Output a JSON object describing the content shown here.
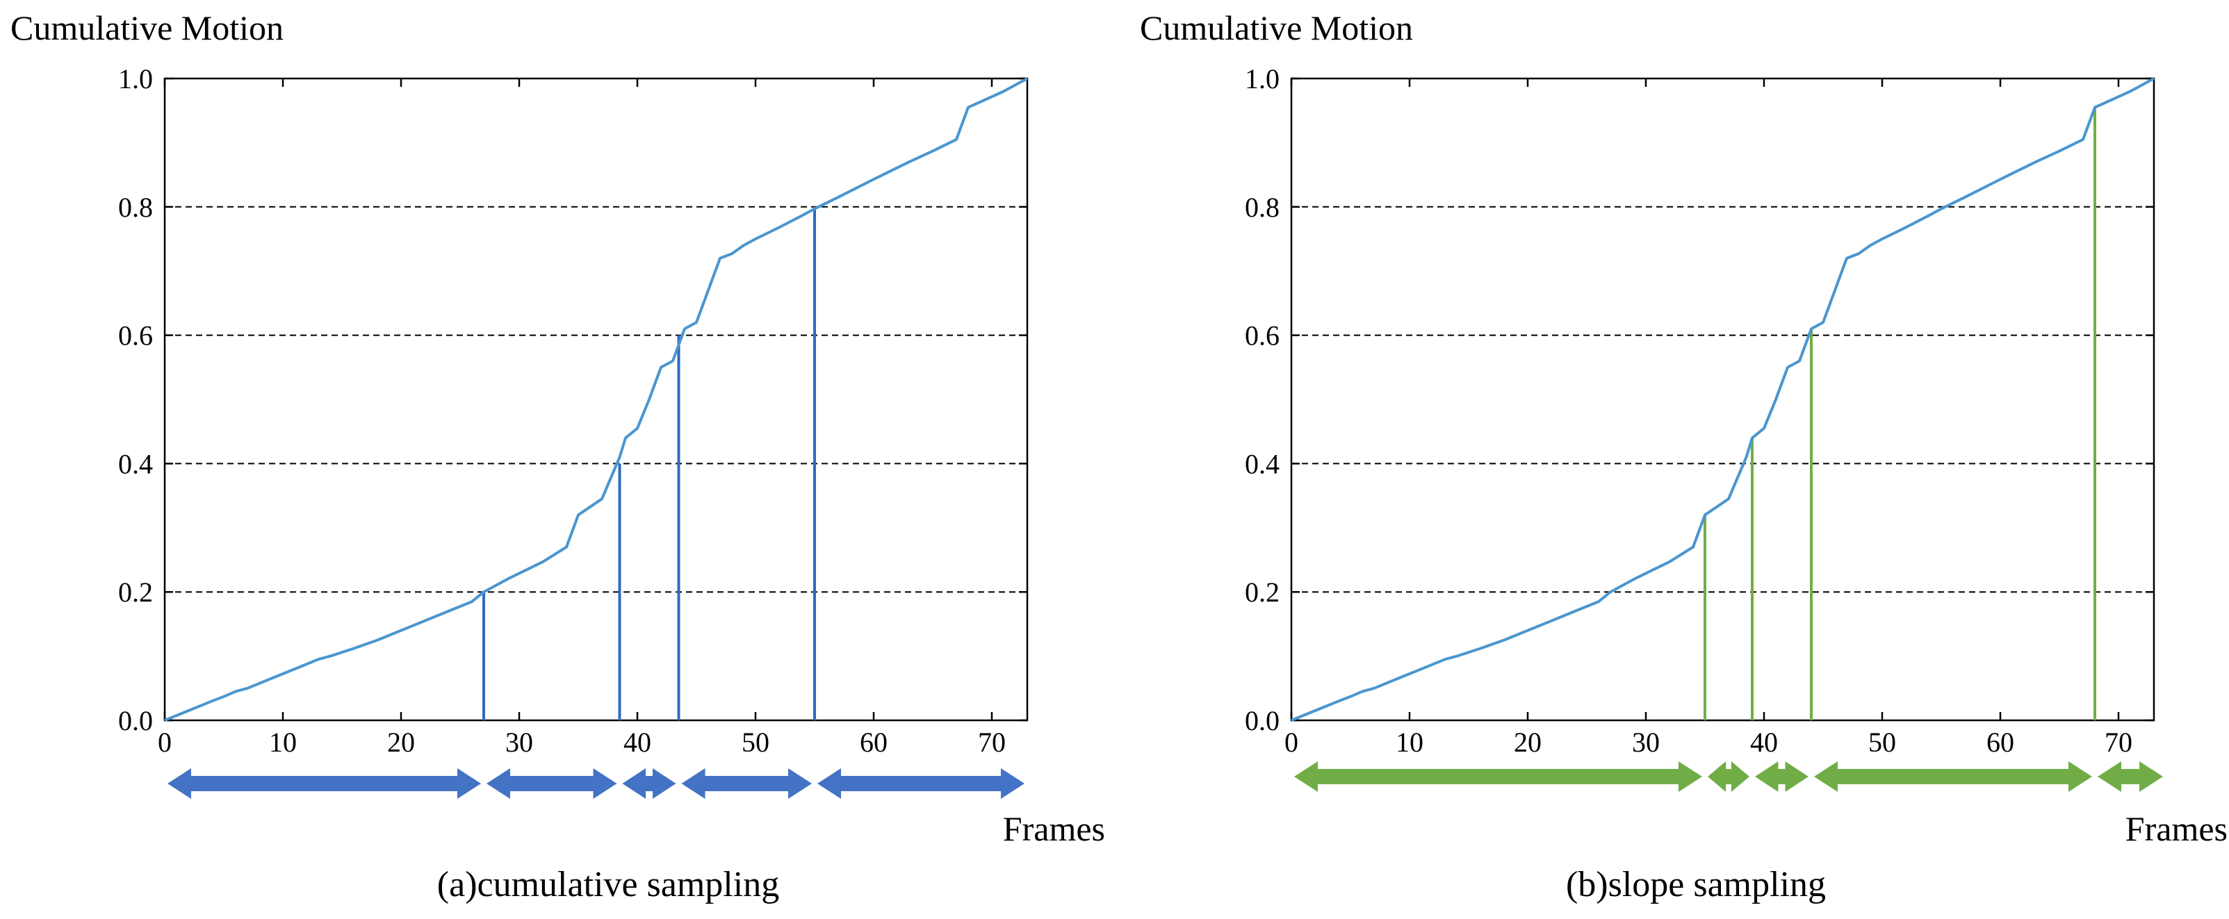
{
  "chart_data": [
    {
      "type": "line",
      "panel": "a",
      "ylabel": "Cumulative Motion",
      "xlabel": "Frames",
      "caption": "(a)cumulative sampling",
      "xlim": [
        0,
        73
      ],
      "ylim": [
        0,
        1
      ],
      "xticks": [
        "0",
        "10",
        "20",
        "30",
        "40",
        "50",
        "60",
        "70"
      ],
      "yticks": [
        "0.0",
        "0.2",
        "0.4",
        "0.6",
        "0.8",
        "1.0"
      ],
      "grid": "horizontal dashed at 0.2, 0.4, 0.6, 0.8",
      "series": [
        {
          "color": "#4a96cf",
          "x": [
            0,
            2,
            4,
            5,
            6,
            7,
            9,
            11,
            13,
            14,
            16,
            18,
            20,
            22,
            24,
            26,
            27,
            29,
            31,
            32,
            34,
            35,
            37,
            38.5,
            39,
            40,
            41,
            42,
            43,
            44,
            45,
            46,
            47,
            48,
            49,
            50,
            52,
            54,
            55,
            57,
            60,
            63,
            65,
            67,
            68,
            71,
            73
          ],
          "y": [
            0,
            0.015,
            0.03,
            0.037,
            0.045,
            0.05,
            0.065,
            0.08,
            0.095,
            0.1,
            0.112,
            0.125,
            0.14,
            0.155,
            0.17,
            0.185,
            0.2,
            0.22,
            0.238,
            0.247,
            0.27,
            0.32,
            0.345,
            0.41,
            0.44,
            0.455,
            0.5,
            0.55,
            0.56,
            0.61,
            0.62,
            0.67,
            0.72,
            0.727,
            0.74,
            0.75,
            0.768,
            0.787,
            0.797,
            0.815,
            0.843,
            0.87,
            0.887,
            0.905,
            0.955,
            0.98,
            1.0
          ]
        }
      ],
      "sample_lines": [
        {
          "x": 27,
          "y": 0.2
        },
        {
          "x": 38.5,
          "y": 0.4
        },
        {
          "x": 43.5,
          "y": 0.6
        },
        {
          "x": 55,
          "y": 0.8
        }
      ],
      "sample_color": "#2f6ac0",
      "segments": [
        [
          0,
          27
        ],
        [
          27,
          38.5
        ],
        [
          38.5,
          43.5
        ],
        [
          43.5,
          55
        ],
        [
          55,
          73
        ]
      ],
      "arrow_color": "#4472c4"
    },
    {
      "type": "line",
      "panel": "b",
      "ylabel": "Cumulative Motion",
      "xlabel": "Frames",
      "caption": "(b)slope sampling",
      "xlim": [
        0,
        73
      ],
      "ylim": [
        0,
        1
      ],
      "xticks": [
        "0",
        "10",
        "20",
        "30",
        "40",
        "50",
        "60",
        "70"
      ],
      "yticks": [
        "0.0",
        "0.2",
        "0.4",
        "0.6",
        "0.8",
        "1.0"
      ],
      "grid": "horizontal dashed at 0.2, 0.4, 0.6, 0.8",
      "series": [
        {
          "color": "#4a96cf",
          "x": [
            0,
            2,
            4,
            5,
            6,
            7,
            9,
            11,
            13,
            14,
            16,
            18,
            20,
            22,
            24,
            26,
            27,
            29,
            31,
            32,
            34,
            35,
            37,
            38.5,
            39,
            40,
            41,
            42,
            43,
            44,
            45,
            46,
            47,
            48,
            49,
            50,
            52,
            54,
            55,
            57,
            60,
            63,
            65,
            67,
            68,
            71,
            73
          ],
          "y": [
            0,
            0.015,
            0.03,
            0.037,
            0.045,
            0.05,
            0.065,
            0.08,
            0.095,
            0.1,
            0.112,
            0.125,
            0.14,
            0.155,
            0.17,
            0.185,
            0.2,
            0.22,
            0.238,
            0.247,
            0.27,
            0.32,
            0.345,
            0.41,
            0.44,
            0.455,
            0.5,
            0.55,
            0.56,
            0.61,
            0.62,
            0.67,
            0.72,
            0.727,
            0.74,
            0.75,
            0.768,
            0.787,
            0.797,
            0.815,
            0.843,
            0.87,
            0.887,
            0.905,
            0.955,
            0.98,
            1.0
          ]
        }
      ],
      "sample_lines": [
        {
          "x": 35,
          "y": 0.32
        },
        {
          "x": 39,
          "y": 0.44
        },
        {
          "x": 44,
          "y": 0.61
        },
        {
          "x": 68,
          "y": 0.955
        }
      ],
      "sample_color": "#70ad47",
      "segments": [
        [
          0,
          35
        ],
        [
          35,
          39
        ],
        [
          39,
          44
        ],
        [
          44,
          68
        ],
        [
          68,
          74
        ]
      ],
      "arrow_color": "#70ad47"
    }
  ]
}
